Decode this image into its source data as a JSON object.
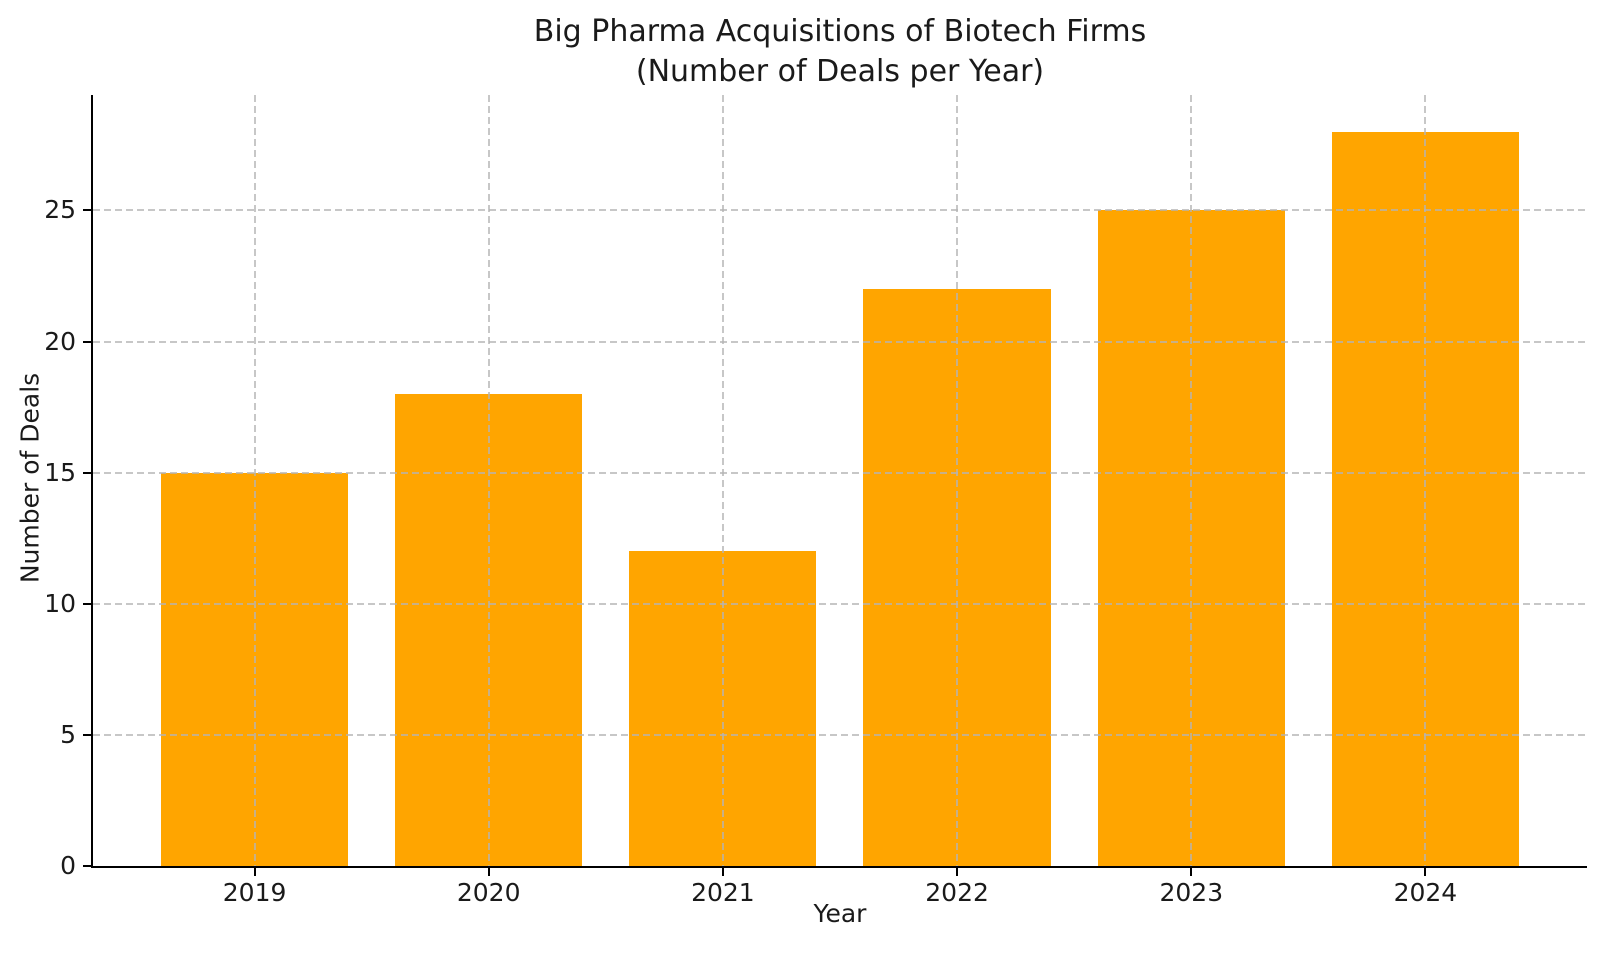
{
  "chart_data": {
    "type": "bar",
    "title": "Big Pharma Acquisitions of Biotech Firms\n(Number of Deals per Year)",
    "xlabel": "Year",
    "ylabel": "Number of Deals",
    "categories": [
      "2019",
      "2020",
      "2021",
      "2022",
      "2023",
      "2024"
    ],
    "values": [
      15,
      18,
      12,
      22,
      25,
      28
    ],
    "yticks": [
      0,
      5,
      10,
      15,
      20,
      25
    ],
    "ylim": [
      0,
      29.4
    ],
    "bar_color": "#FFA500",
    "grid": true,
    "grid_linestyle": "dashed",
    "grid_color": "#b4b4b4",
    "axis_color": "#000000",
    "background_color": "#ffffff",
    "legend": "none"
  }
}
